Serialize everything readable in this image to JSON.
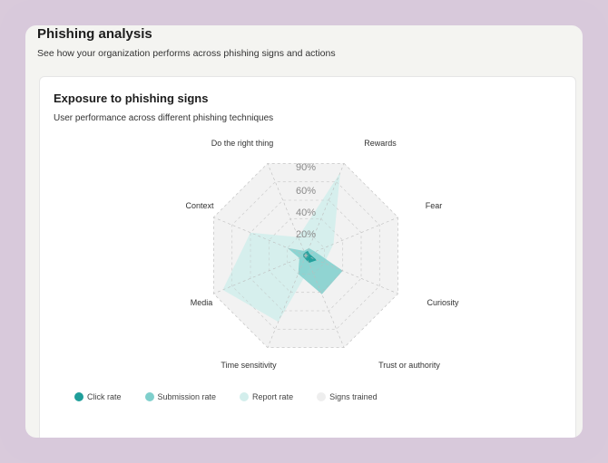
{
  "header": {
    "title": "Phishing analysis",
    "subtitle": "See how your organization performs across phishing signs and actions"
  },
  "card": {
    "title": "Exposure to phishing signs",
    "subtitle": "User performance across different phishing techniques"
  },
  "colors": {
    "click": "#1f9e9a",
    "submission": "#7fcfcc",
    "report": "#d3eeec",
    "trained": "#eeeeee",
    "grid": "#c9c9c9"
  },
  "chart_data": {
    "type": "radar",
    "title": "",
    "categories": [
      "Rewards",
      "Fear",
      "Curiosity",
      "Trust or authority",
      "Time sensitivity",
      "Media",
      "Context",
      "Do the right thing"
    ],
    "tick_labels": [
      "20%",
      "40%",
      "60%",
      "90%"
    ],
    "rlim": [
      0,
      100
    ],
    "series": [
      {
        "name": "Click rate",
        "values": [
          5,
          4,
          12,
          8,
          3,
          3,
          3,
          3
        ]
      },
      {
        "name": "Submission rate",
        "values": [
          8,
          10,
          40,
          42,
          20,
          7,
          20,
          5
        ]
      },
      {
        "name": "Report rate",
        "values": [
          90,
          30,
          20,
          12,
          72,
          90,
          60,
          20
        ]
      },
      {
        "name": "Signs trained",
        "values": [
          100,
          100,
          100,
          100,
          100,
          100,
          100,
          100
        ]
      }
    ],
    "legend": [
      "Click rate",
      "Submission rate",
      "Report rate",
      "Signs trained"
    ],
    "legend_position": "bottom-left"
  }
}
